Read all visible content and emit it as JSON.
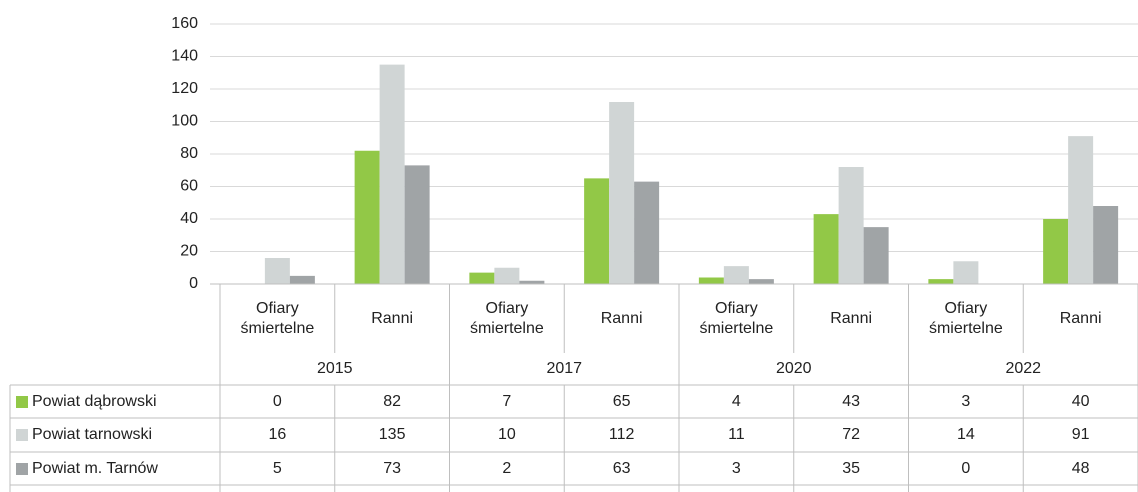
{
  "chart_data": {
    "type": "bar",
    "categories": [
      "Ofiary śmiertelne",
      "Ranni",
      "Ofiary śmiertelne",
      "Ranni",
      "Ofiary śmiertelne",
      "Ranni",
      "Ofiary śmiertelne",
      "Ranni"
    ],
    "category_groups": [
      "2015",
      "2017",
      "2020",
      "2022"
    ],
    "series": [
      {
        "name": "Powiat dąbrowski",
        "color": "#92c847",
        "values": [
          0,
          82,
          7,
          65,
          4,
          43,
          3,
          40
        ]
      },
      {
        "name": "Powiat tarnowski",
        "color": "#d0d5d5",
        "values": [
          16,
          135,
          10,
          112,
          11,
          72,
          14,
          91
        ]
      },
      {
        "name": "Powiat m. Tarnów",
        "color": "#a0a4a6",
        "values": [
          5,
          73,
          2,
          63,
          3,
          35,
          0,
          48
        ]
      }
    ],
    "ylim": [
      0,
      160
    ],
    "yticks": [
      0,
      20,
      40,
      60,
      80,
      100,
      120,
      140,
      160
    ],
    "grid": true,
    "data_table": true
  }
}
